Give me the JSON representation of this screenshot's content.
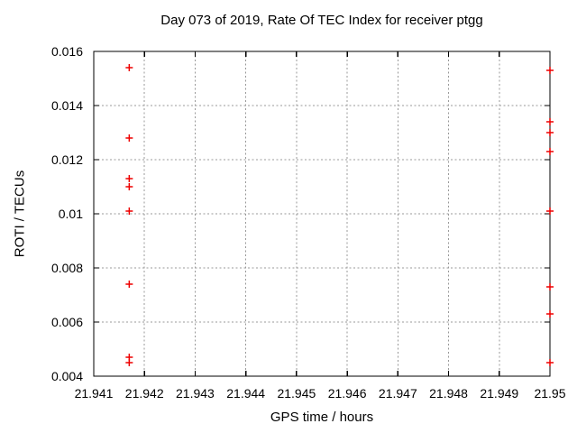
{
  "chart_data": {
    "type": "scatter",
    "title": "Day 073 of 2019, Rate Of TEC Index for receiver ptgg",
    "xlabel": "GPS time / hours",
    "ylabel": "ROTI / TECUs",
    "xlim": [
      21.941,
      21.95
    ],
    "ylim": [
      0.004,
      0.016
    ],
    "x_ticks": [
      21.941,
      21.942,
      21.943,
      21.944,
      21.945,
      21.946,
      21.947,
      21.948,
      21.949,
      21.95
    ],
    "x_tick_labels": [
      "21.941",
      "21.942",
      "21.943",
      "21.944",
      "21.945",
      "21.946",
      "21.947",
      "21.948",
      "21.949",
      "21.95"
    ],
    "y_ticks": [
      0.004,
      0.006,
      0.008,
      0.01,
      0.012,
      0.014,
      0.016
    ],
    "y_tick_labels": [
      "0.004",
      "0.006",
      "0.008",
      "0.01",
      "0.012",
      "0.014",
      "0.016"
    ],
    "grid": true,
    "legend": "none",
    "marker": {
      "shape": "plus",
      "color": "#ee0000",
      "size": 8
    },
    "colors": {
      "grid": "#999999",
      "axis": "#000000",
      "background": "#ffffff",
      "text": "#000000"
    },
    "series": [
      {
        "name": "ROTI",
        "points": [
          [
            21.9417,
            0.0154
          ],
          [
            21.9417,
            0.0128
          ],
          [
            21.9417,
            0.0113
          ],
          [
            21.9417,
            0.011
          ],
          [
            21.9417,
            0.0101
          ],
          [
            21.9417,
            0.0074
          ],
          [
            21.9417,
            0.0047
          ],
          [
            21.9417,
            0.0045
          ],
          [
            21.95,
            0.0153
          ],
          [
            21.95,
            0.0134
          ],
          [
            21.95,
            0.013
          ],
          [
            21.95,
            0.0123
          ],
          [
            21.95,
            0.0101
          ],
          [
            21.95,
            0.0073
          ],
          [
            21.95,
            0.0063
          ],
          [
            21.95,
            0.0045
          ]
        ]
      }
    ]
  }
}
